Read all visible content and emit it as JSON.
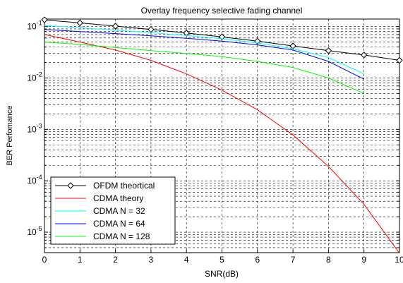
{
  "chart_data": {
    "type": "line",
    "title": "Overlay frequency selective fading channel",
    "xlabel": "SNR(dB)",
    "ylabel": "BER Perfomance",
    "xlim": [
      0,
      10
    ],
    "ylim": [
      4e-06,
      0.14
    ],
    "yscale": "log",
    "grid": "on",
    "legend_position": "bottom-left",
    "x_ticks": [
      "0",
      "1",
      "2",
      "3",
      "4",
      "5",
      "6",
      "7",
      "8",
      "9",
      "10"
    ],
    "y_ticks": [
      {
        "base": "10",
        "exp": "-1",
        "value": 0.1
      },
      {
        "base": "10",
        "exp": "-2",
        "value": 0.01
      },
      {
        "base": "10",
        "exp": "-3",
        "value": 0.001
      },
      {
        "base": "10",
        "exp": "-4",
        "value": 0.0001
      },
      {
        "base": "10",
        "exp": "-5",
        "value": 1e-05
      }
    ],
    "series": [
      {
        "name": "OFDM theortical",
        "color": "#000000",
        "marker": "diamond",
        "x": [
          0,
          1,
          2,
          3,
          4,
          5,
          6,
          7,
          8,
          9,
          10
        ],
        "y": [
          0.135,
          0.118,
          0.102,
          0.088,
          0.075,
          0.063,
          0.052,
          0.042,
          0.034,
          0.028,
          0.022
        ]
      },
      {
        "name": "CDMA theory",
        "color": "#ff0000",
        "marker": "none",
        "x": [
          0,
          1,
          2,
          3,
          4,
          5,
          6,
          7,
          8,
          9,
          10
        ],
        "y": [
          0.07,
          0.05,
          0.035,
          0.022,
          0.012,
          0.0058,
          0.0024,
          0.00078,
          0.00019,
          3.5e-05,
          3.9e-06
        ]
      },
      {
        "name": "CDMA N = 32",
        "color": "#00ffff",
        "marker": "none",
        "x": [
          0,
          1,
          2,
          3,
          4,
          5,
          6,
          7,
          8,
          9
        ],
        "y": [
          0.105,
          0.095,
          0.085,
          0.076,
          0.067,
          0.058,
          0.048,
          0.037,
          0.025,
          0.012
        ]
      },
      {
        "name": "CDMA N = 64",
        "color": "#0000ff",
        "marker": "none",
        "x": [
          0,
          1,
          2,
          3,
          4,
          5,
          6,
          7,
          8,
          9
        ],
        "y": [
          0.088,
          0.08,
          0.073,
          0.066,
          0.059,
          0.052,
          0.044,
          0.035,
          0.021,
          0.0095
        ]
      },
      {
        "name": "CDMA N = 128",
        "color": "#00ff00",
        "marker": "none",
        "x": [
          0,
          1,
          2,
          3,
          4,
          5,
          6,
          7,
          8,
          9
        ],
        "y": [
          0.05,
          0.045,
          0.039,
          0.034,
          0.03,
          0.026,
          0.021,
          0.016,
          0.01,
          0.005
        ]
      }
    ]
  }
}
